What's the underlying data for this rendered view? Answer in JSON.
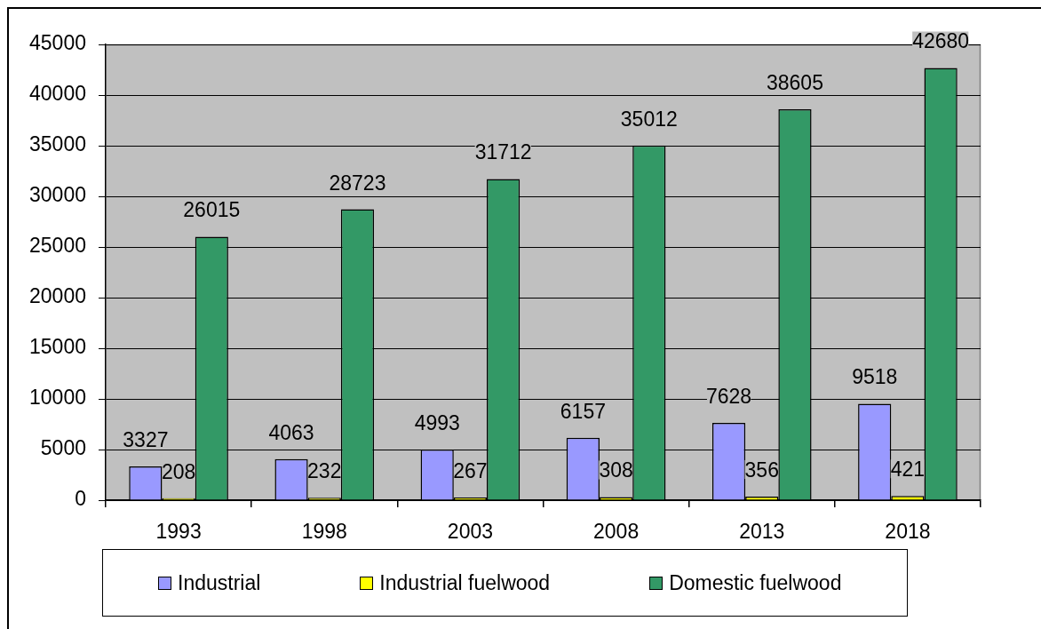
{
  "chart_data": {
    "type": "bar",
    "categories": [
      "1993",
      "1998",
      "2003",
      "2008",
      "2013",
      "2018"
    ],
    "series": [
      {
        "name": "Industrial",
        "color": "#9999ff",
        "values": [
          3327,
          4063,
          4993,
          6157,
          7628,
          9518
        ]
      },
      {
        "name": "Industrial fuelwood",
        "color": "#ffff00",
        "values": [
          208,
          232,
          267,
          308,
          356,
          421
        ]
      },
      {
        "name": "Domestic fuelwood",
        "color": "#339966",
        "values": [
          26015,
          28723,
          31712,
          35012,
          38605,
          42680
        ]
      }
    ],
    "ylim": [
      0,
      45000
    ],
    "yticks": [
      0,
      5000,
      10000,
      15000,
      20000,
      25000,
      30000,
      35000,
      40000,
      45000
    ],
    "grid": "y",
    "legend": "bottom",
    "data_labels": true
  }
}
